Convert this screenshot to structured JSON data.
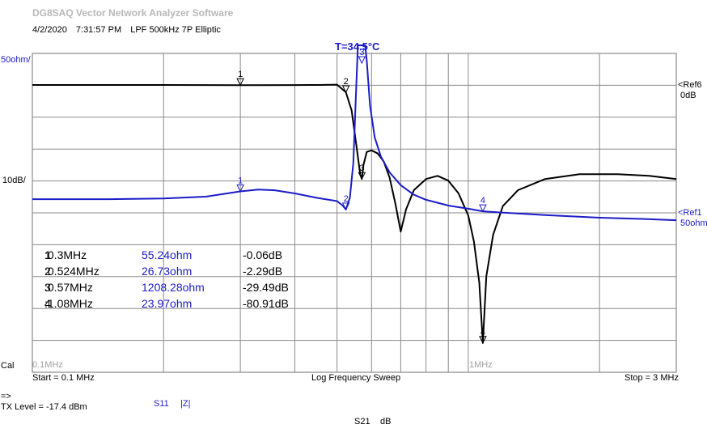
{
  "app_title": "DG8SAQ Vector Network Analyzer Software",
  "header": {
    "date": "4/2/2020",
    "time": "7:31:57 PM",
    "description": "LPF 500kHz 7P Elliptic"
  },
  "temperature": "T=34.5°C",
  "left_axis": {
    "top_label": "50ohm/",
    "mid_label": "10dB/",
    "cal_label": "Cal"
  },
  "right_refs": {
    "ref6_name": "<Ref6",
    "ref6_value": "0dB",
    "ref1_name": "<Ref1",
    "ref1_value": "50ohm"
  },
  "bottom": {
    "start": "Start = 0.1 MHz",
    "sweep": "Log Frequency Sweep",
    "stop": "Stop = 3 MHz",
    "tick_01": "0.1MHz",
    "tick_1": "1MHz",
    "tx_arrow": "=>",
    "tx_level": "TX Level = -17.4 dBm",
    "s11_label": "S11",
    "z_label": "|Z|",
    "s21_label": "S21",
    "db_label": "dB"
  },
  "markers": [
    {
      "id": "1",
      "freq": "0.3MHz",
      "impedance": "55.24ohm",
      "gain": "-0.06dB"
    },
    {
      "id": "2",
      "freq": "0.524MHz",
      "impedance": "26.73ohm",
      "gain": "-2.29dB"
    },
    {
      "id": "3",
      "freq": "0.57MHz",
      "impedance": "1208.28ohm",
      "gain": "-29.49dB"
    },
    {
      "id": "4",
      "freq": "1.08MHz",
      "impedance": "23.97ohm",
      "gain": "-80.91dB"
    }
  ],
  "chart_data": {
    "type": "line",
    "x_scale": "log",
    "xlim": [
      0.1,
      3
    ],
    "grid": true,
    "series": [
      {
        "name": "S21",
        "color": "#000000",
        "x": [
          0.1,
          0.2,
          0.3,
          0.4,
          0.45,
          0.5,
          0.524,
          0.54,
          0.555,
          0.565,
          0.57,
          0.575,
          0.585,
          0.6,
          0.62,
          0.64,
          0.66,
          0.68,
          0.7,
          0.72,
          0.75,
          0.8,
          0.85,
          0.9,
          0.95,
          1.0,
          1.03,
          1.06,
          1.08,
          1.1,
          1.14,
          1.2,
          1.3,
          1.5,
          1.8,
          2.2,
          2.6,
          3.0
        ],
        "y": [
          0,
          0,
          -0.06,
          -0.02,
          0,
          0.1,
          -2.29,
          -8,
          -20,
          -28,
          -29.49,
          -25,
          -21,
          -20.5,
          -21.5,
          -24,
          -29,
          -37,
          -46,
          -39,
          -33,
          -29.5,
          -28.5,
          -30,
          -34,
          -41,
          -49,
          -62,
          -80.91,
          -60,
          -47,
          -38,
          -33,
          -29.5,
          -28,
          -28,
          -28.5,
          -29.5
        ],
        "ylim": [
          -100,
          0
        ]
      },
      {
        "name": "|Z|",
        "color": "#1c1cc8",
        "x": [
          0.1,
          0.15,
          0.2,
          0.25,
          0.3,
          0.33,
          0.36,
          0.4,
          0.45,
          0.5,
          0.515,
          0.524,
          0.535,
          0.545,
          0.552,
          0.558,
          0.564,
          0.568,
          0.571,
          0.575,
          0.58,
          0.585,
          0.595,
          0.61,
          0.63,
          0.66,
          0.7,
          0.75,
          0.8,
          0.9,
          1.0,
          1.08,
          1.2,
          1.5,
          2.0,
          2.5,
          3.0
        ],
        "y": [
          43,
          43,
          44,
          47,
          55.24,
          58,
          57,
          52,
          45,
          40,
          33,
          26.73,
          45,
          100,
          200,
          300,
          360,
          380,
          380,
          380,
          330,
          260,
          190,
          140,
          110,
          85,
          65,
          50,
          42,
          33,
          28,
          23.97,
          22,
          18,
          14,
          12,
          10
        ],
        "ylim": [
          0,
          400
        ]
      }
    ],
    "marker_positions": [
      0.3,
      0.524,
      0.57,
      1.08
    ]
  }
}
